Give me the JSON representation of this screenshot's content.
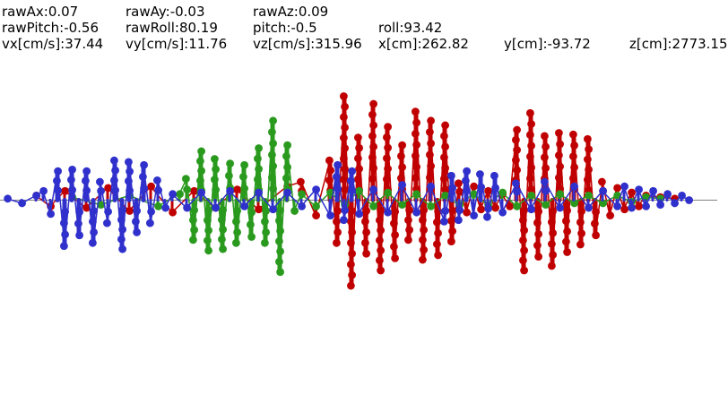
{
  "readout": {
    "rawAx": "rawAx:0.07",
    "rawAy": "rawAy:-0.03",
    "rawAz": "rawAz:0.09",
    "rawPitch": "rawPitch:-0.56",
    "rawRoll": "rawRoll:80.19",
    "pitch": "pitch:-0.5",
    "roll": "roll:93.42",
    "vx": "vx[cm/s]:37.44",
    "vy": "vy[cm/s]:11.76",
    "vz": "vz[cm/s]:315.96",
    "x": "x[cm]:262.82",
    "y": "y[cm]:-93.72",
    "z": "z[cm]:2773.15"
  },
  "colors": {
    "background": "#ffffff",
    "baseline": "#808080",
    "red": "#c00000",
    "green": "#2a9a1e",
    "blue": "#3030cc"
  },
  "chart_data": {
    "type": "line",
    "title": "",
    "xlabel": "",
    "ylabel": "",
    "grid": false,
    "x_range": [
      0,
      100
    ],
    "y_range": [
      -8,
      9
    ],
    "baseline_y": 0,
    "series": [
      {
        "color": "red",
        "x": [
          5,
          7,
          9,
          12,
          15,
          18,
          21,
          24,
          27,
          30,
          33,
          36,
          40,
          42,
          44,
          46,
          47,
          48,
          49,
          50,
          51,
          52,
          53,
          54,
          55,
          56,
          57,
          58,
          59,
          60,
          61,
          62,
          63,
          64,
          65,
          66,
          67,
          68,
          69,
          70,
          71,
          72,
          73,
          74,
          75,
          76,
          77,
          78,
          79,
          80,
          81,
          82,
          83,
          84,
          85,
          86,
          87,
          88,
          89,
          90,
          92,
          94
        ],
        "y": [
          0.3,
          -0.4,
          0.6,
          -0.5,
          0.8,
          -0.7,
          0.9,
          -0.8,
          0.6,
          -0.5,
          0.7,
          -0.6,
          0.9,
          1.2,
          -1.0,
          2.6,
          -2.8,
          6.8,
          -5.6,
          4.1,
          -3.5,
          6.3,
          -4.6,
          4.8,
          -3.8,
          3.6,
          -2.6,
          5.8,
          -3.9,
          5.2,
          -3.6,
          4.9,
          -2.7,
          1.1,
          -0.8,
          0.9,
          -0.6,
          0.6,
          -0.5,
          0.4,
          -0.4,
          4.6,
          -4.6,
          5.7,
          -3.7,
          4.2,
          -4.3,
          4.4,
          -3.4,
          4.3,
          -2.9,
          4.0,
          -2.3,
          1.2,
          -1.0,
          0.8,
          -0.6,
          0.5,
          -0.4,
          0.3,
          0.2,
          0.1
        ]
      },
      {
        "color": "green",
        "x": [
          10,
          14,
          18,
          22,
          25,
          26,
          27,
          28,
          29,
          30,
          31,
          32,
          33,
          34,
          35,
          36,
          37,
          38,
          39,
          40,
          41,
          42,
          44,
          46,
          48,
          50,
          52,
          54,
          56,
          58,
          60,
          62,
          64,
          66,
          68,
          70,
          72,
          74,
          76,
          78,
          80,
          82,
          84,
          86,
          88,
          90,
          92
        ],
        "y": [
          0.2,
          -0.3,
          0.3,
          -0.4,
          0.4,
          1.4,
          -2.6,
          3.2,
          -3.3,
          2.7,
          -3.2,
          2.4,
          -2.8,
          2.3,
          -2.4,
          3.4,
          -2.8,
          5.2,
          -4.7,
          3.6,
          -0.7,
          0.4,
          -0.4,
          0.5,
          -0.3,
          0.6,
          -0.4,
          0.5,
          -0.3,
          0.4,
          -0.4,
          0.3,
          -0.3,
          0.4,
          -0.3,
          0.5,
          -0.4,
          0.3,
          -0.3,
          0.4,
          -0.2,
          0.3,
          -0.2,
          0.3,
          -0.1,
          0.2,
          0.1
        ]
      },
      {
        "color": "blue",
        "x": [
          1,
          3,
          5,
          6,
          7,
          8,
          9,
          10,
          11,
          12,
          13,
          14,
          15,
          16,
          17,
          18,
          19,
          20,
          21,
          22,
          23,
          24,
          26,
          28,
          30,
          32,
          34,
          36,
          38,
          40,
          42,
          44,
          46,
          47,
          48,
          49,
          50,
          52,
          54,
          56,
          58,
          60,
          62,
          63,
          64,
          65,
          66,
          67,
          68,
          69,
          70,
          72,
          74,
          76,
          78,
          80,
          82,
          84,
          86,
          87,
          88,
          89,
          90,
          91,
          92,
          93,
          94,
          95,
          96
        ],
        "y": [
          0.1,
          -0.2,
          0.3,
          0.6,
          -0.9,
          1.9,
          -3.0,
          2.0,
          -2.3,
          1.9,
          -2.8,
          1.2,
          -1.5,
          2.6,
          -3.2,
          2.5,
          -2.1,
          2.3,
          -1.5,
          1.3,
          -0.5,
          0.4,
          -0.5,
          0.5,
          -0.5,
          0.6,
          -0.4,
          0.5,
          -0.6,
          0.5,
          -0.4,
          0.7,
          -1.0,
          2.3,
          -1.3,
          1.9,
          -0.9,
          0.7,
          -0.8,
          1.0,
          -0.8,
          0.9,
          -1.4,
          1.6,
          -1.3,
          1.9,
          -1.0,
          1.7,
          -1.1,
          1.6,
          -0.8,
          1.1,
          -0.6,
          1.2,
          -0.5,
          0.9,
          -0.5,
          0.6,
          -0.4,
          0.9,
          -0.5,
          0.7,
          -0.4,
          0.6,
          -0.3,
          0.4,
          -0.2,
          0.3,
          0.0
        ]
      }
    ]
  }
}
